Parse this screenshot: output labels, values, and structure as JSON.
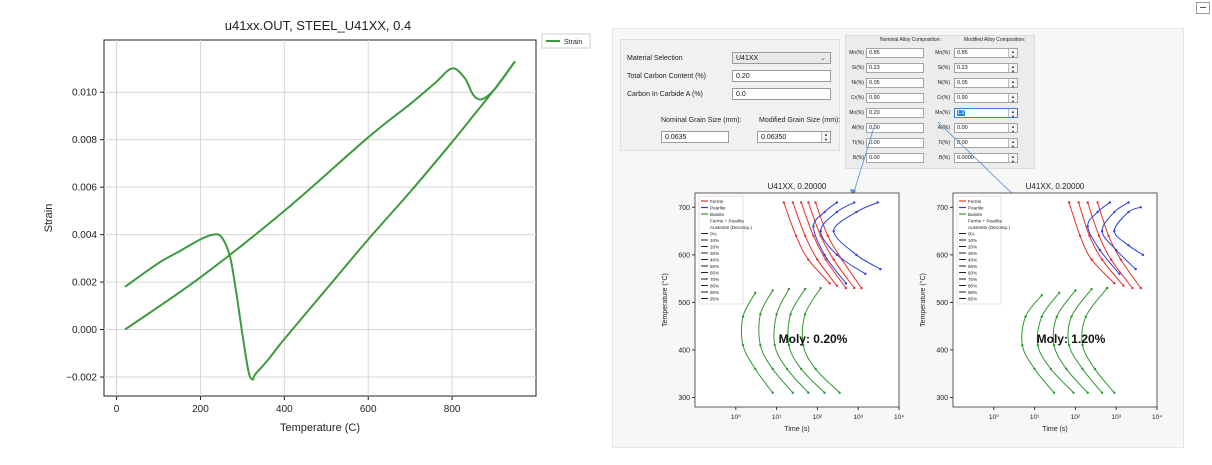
{
  "chart_data": [
    {
      "type": "line",
      "title": "u41xx.OUT, STEEL_U41XX, 0.4",
      "xlabel": "Temperature (C)",
      "ylabel": "Strain",
      "xlim": [
        -30,
        1000
      ],
      "ylim": [
        -0.0028,
        0.0122
      ],
      "xticks": [
        0,
        200,
        400,
        600,
        800
      ],
      "yticks": [
        -0.002,
        0.0,
        0.002,
        0.004,
        0.006,
        0.008,
        0.01
      ],
      "xtick_labels": [
        "0",
        "200",
        "400",
        "600",
        "800"
      ],
      "ytick_labels": [
        "−0.002",
        "0.000",
        "0.002",
        "0.004",
        "0.006",
        "0.008",
        "0.010"
      ],
      "legend": [
        "Strain"
      ],
      "color": "#3e9a3e",
      "series": [
        {
          "name": "Strain",
          "segments": [
            {
              "x": [
                20,
                200,
                400,
                600,
                700,
                760,
                800,
                830,
                850,
                870,
                900,
                950
              ],
              "y": [
                0.0,
                0.0022,
                0.005,
                0.0081,
                0.0095,
                0.0104,
                0.011,
                0.0106,
                0.0099,
                0.0097,
                0.0101,
                0.0113
              ]
            },
            {
              "x": [
                950,
                900,
                850,
                800,
                700,
                600,
                500,
                400,
                360,
                330,
                325,
                315,
                300,
                285,
                270,
                250,
                230,
                200,
                150,
                100,
                20
              ],
              "y": [
                0.0113,
                0.0101,
                0.009,
                0.0079,
                0.0058,
                0.0038,
                0.0017,
                -0.0004,
                -0.0013,
                -0.0019,
                -0.0021,
                -0.0018,
                -0.0002,
                0.0016,
                0.0031,
                0.0039,
                0.004,
                0.0038,
                0.0033,
                0.0028,
                0.0018
              ]
            }
          ]
        }
      ]
    },
    {
      "type": "line",
      "title": "U41XX, 0.20000",
      "xlabel": "Time (s)",
      "ylabel": "Temperature (°C)",
      "xscale": "log",
      "xlim": [
        0.1,
        10000
      ],
      "ylim": [
        280,
        730
      ],
      "xtick_labels": [
        "10⁰",
        "10¹",
        "10²",
        "10³",
        "10⁴"
      ],
      "ytick_labels": [
        "300",
        "400",
        "500",
        "600",
        "700"
      ],
      "yticks": [
        300,
        400,
        500,
        600,
        700
      ],
      "annotation": "Moly: 0.20%",
      "legend": [
        "Ferrite",
        "Pearlite",
        "Bainite",
        "Ferrite + Pearlite",
        "Austenite (Decomp.)",
        "0%",
        "10%",
        "20%",
        "30%",
        "40%",
        "50%",
        "60%",
        "70%",
        "80%",
        "90%",
        "95%"
      ],
      "colors": {
        "ferrite": "#e8312b",
        "pearlite": "#2a3fe0",
        "bainite": "#2a9a2a"
      },
      "ferrite": [
        {
          "t": [
            15,
            30,
            60,
            200
          ],
          "T": [
            710,
            640,
            590,
            540
          ]
        },
        {
          "t": [
            25,
            50,
            100,
            300
          ],
          "T": [
            710,
            640,
            590,
            535
          ]
        },
        {
          "t": [
            40,
            80,
            160,
            500
          ],
          "T": [
            710,
            640,
            590,
            530
          ]
        },
        {
          "t": [
            60,
            120,
            250,
            800
          ],
          "T": [
            710,
            640,
            590,
            530
          ]
        },
        {
          "t": [
            90,
            180,
            400,
            1200
          ],
          "T": [
            710,
            640,
            590,
            530
          ]
        }
      ],
      "pearlite": [
        {
          "t": [
            300,
            150,
            80,
            150,
            500
          ],
          "T": [
            710,
            690,
            660,
            600,
            540
          ]
        },
        {
          "t": [
            800,
            300,
            120,
            300,
            1500
          ],
          "T": [
            710,
            690,
            650,
            600,
            560
          ]
        },
        {
          "t": [
            3000,
            900,
            250,
            900,
            3500
          ],
          "T": [
            710,
            690,
            650,
            600,
            570
          ]
        }
      ],
      "bainite": [
        {
          "t": [
            3,
            1.5,
            1.5,
            3,
            8
          ],
          "T": [
            520,
            470,
            410,
            360,
            310
          ]
        },
        {
          "t": [
            8,
            4,
            4,
            8,
            25
          ],
          "T": [
            525,
            475,
            410,
            360,
            310
          ]
        },
        {
          "t": [
            20,
            10,
            9,
            18,
            60
          ],
          "T": [
            528,
            475,
            410,
            360,
            310
          ]
        },
        {
          "t": [
            50,
            22,
            20,
            40,
            150
          ],
          "T": [
            528,
            475,
            410,
            360,
            310
          ]
        },
        {
          "t": [
            120,
            50,
            45,
            90,
            350
          ],
          "T": [
            530,
            475,
            410,
            360,
            310
          ]
        }
      ]
    },
    {
      "type": "line",
      "title": "U41XX, 0.20000",
      "xlabel": "Time (s)",
      "ylabel": "Temperature (°C)",
      "xscale": "log",
      "xlim": [
        0.1,
        10000
      ],
      "ylim": [
        280,
        730
      ],
      "xtick_labels": [
        "10⁰",
        "10¹",
        "10²",
        "10³",
        "10⁴"
      ],
      "ytick_labels": [
        "300",
        "400",
        "500",
        "600",
        "700"
      ],
      "yticks": [
        300,
        400,
        500,
        600,
        700
      ],
      "annotation": "Moly: 1.20%",
      "legend": [
        "Ferrite",
        "Pearlite",
        "Bainite",
        "Ferrite + Pearlite",
        "Austenite (Decomp.)",
        "0%",
        "10%",
        "20%",
        "30%",
        "40%",
        "50%",
        "60%",
        "70%",
        "80%",
        "90%",
        "95%"
      ],
      "colors": {
        "ferrite": "#e8312b",
        "pearlite": "#2a3fe0",
        "bainite": "#2a9a2a"
      },
      "ferrite": [
        {
          "t": [
            70,
            130,
            250,
            900
          ],
          "T": [
            710,
            640,
            590,
            540
          ]
        },
        {
          "t": [
            120,
            220,
            450,
            1500
          ],
          "T": [
            710,
            640,
            590,
            535
          ]
        },
        {
          "t": [
            200,
            380,
            750,
            2500
          ],
          "T": [
            710,
            640,
            590,
            530
          ]
        },
        {
          "t": [
            350,
            650,
            1300,
            4000
          ],
          "T": [
            710,
            640,
            590,
            530
          ]
        }
      ],
      "pearlite": [
        {
          "t": [
            700,
            350,
            200,
            400,
            1200
          ],
          "T": [
            710,
            690,
            660,
            610,
            560
          ]
        },
        {
          "t": [
            2000,
            900,
            450,
            1000,
            3000
          ],
          "T": [
            710,
            690,
            650,
            610,
            570
          ]
        },
        {
          "t": [
            4000,
            2000,
            900,
            2000,
            4500
          ],
          "T": [
            700,
            690,
            650,
            620,
            600
          ]
        }
      ],
      "bainite": [
        {
          "t": [
            15,
            6,
            5,
            10,
            30
          ],
          "T": [
            515,
            470,
            410,
            360,
            310
          ]
        },
        {
          "t": [
            40,
            15,
            12,
            25,
            90
          ],
          "T": [
            520,
            470,
            410,
            360,
            310
          ]
        },
        {
          "t": [
            100,
            35,
            30,
            60,
            200
          ],
          "T": [
            525,
            470,
            410,
            360,
            310
          ]
        },
        {
          "t": [
            250,
            80,
            70,
            150,
            450
          ],
          "T": [
            528,
            470,
            410,
            360,
            310
          ]
        },
        {
          "t": [
            600,
            180,
            150,
            300,
            900
          ],
          "T": [
            530,
            470,
            410,
            360,
            310
          ]
        }
      ]
    }
  ],
  "form": {
    "material_selection_label": "Material Selection",
    "material_selection_value": "U41XX",
    "total_carbon_label": "Total Carbon Content (%)",
    "total_carbon_value": "0.20",
    "carbide_label": "Carbon In Carbide A (%)",
    "carbide_value": "0.0",
    "nominal_grain_label": "Nominal Grain Size (mm):",
    "nominal_grain_value": "0.0635",
    "modified_grain_label": "Modified Grain Size (mm):",
    "modified_grain_value": "0.06350"
  },
  "composition": {
    "nominal_header": "Nominal Alloy Composition:",
    "modified_header": "Modified Alloy Composition:",
    "rows": [
      {
        "label": "Mn(%)",
        "nominal": "0.85",
        "modified": "0.85"
      },
      {
        "label": "Si(%)",
        "nominal": "0.23",
        "modified": "0.23"
      },
      {
        "label": "Ni(%)",
        "nominal": "0.05",
        "modified": "0.05"
      },
      {
        "label": "Cr(%)",
        "nominal": "0.90",
        "modified": "0.90"
      },
      {
        "label": "Mo(%)",
        "nominal": "0.20",
        "modified": "1.2"
      },
      {
        "label": "Al(%)",
        "nominal": "0.00",
        "modified": "0.00"
      },
      {
        "label": "Ti(%)",
        "nominal": "0.00",
        "modified": "0.00"
      },
      {
        "label": "B(%)",
        "nominal": "0.00",
        "modified": "0.0000"
      }
    ]
  },
  "icons": {
    "dropdown": "chevron-down-icon",
    "spinner": "spin-arrows-icon",
    "window_control": "minimize-icon"
  }
}
